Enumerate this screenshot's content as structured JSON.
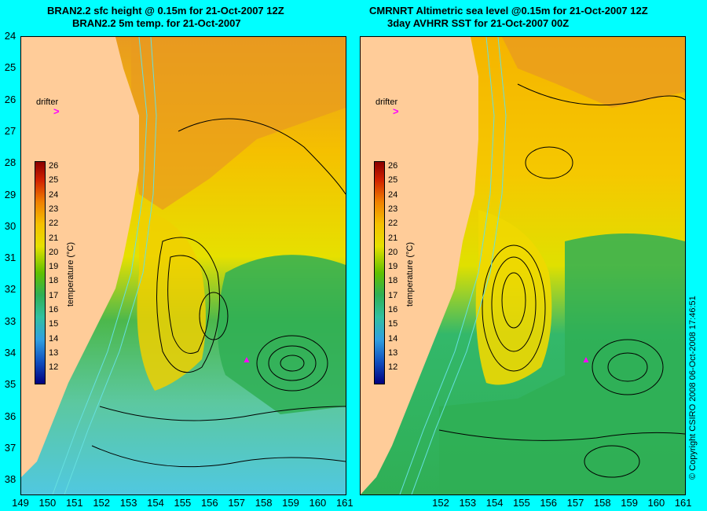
{
  "titles": {
    "left_line1": "BRAN2.2 sfc height @ 0.15m for 21-Oct-2007 12Z",
    "left_line2": "BRAN2.2 5m temp. for 21-Oct-2007",
    "right_line1": "CMRNRT Altimetric sea level  @0.15m  for 21-Oct-2007 12Z",
    "right_line2": "3day AVHRR SST for 21-Oct-2007 00Z"
  },
  "latitude_labels": [
    "24",
    "25",
    "26",
    "27",
    "28",
    "29",
    "30",
    "31",
    "32",
    "33",
    "34",
    "35",
    "36",
    "37",
    "38"
  ],
  "longitude_labels_left": [
    "149",
    "150",
    "151",
    "152",
    "153",
    "154",
    "155",
    "156",
    "157",
    "158",
    "159",
    "160",
    "161"
  ],
  "longitude_labels_right": [
    "152",
    "153",
    "154",
    "155",
    "156",
    "157",
    "158",
    "159",
    "160",
    "161"
  ],
  "colorbar": {
    "ticks": [
      "26",
      "25",
      "24",
      "23",
      "22",
      "21",
      "20",
      "19",
      "18",
      "17",
      "16",
      "15",
      "14",
      "13",
      "12"
    ],
    "title": "temperature (°C)"
  },
  "drifter": {
    "label": "drifter",
    "marker": ">"
  },
  "copyright": "© Copyright CSIRO 2008  06-Oct-2008 17:46:51",
  "colors": {
    "background": "#00FFFF",
    "land": "#FFCC99",
    "warm": "#F5B400",
    "cool": "#33B86A",
    "drifter": "#FF00FF"
  }
}
